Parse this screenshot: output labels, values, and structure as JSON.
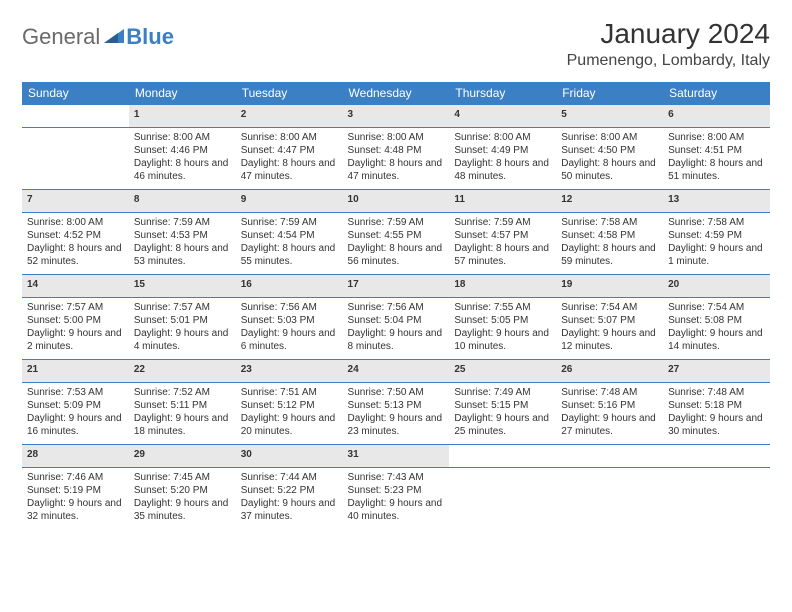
{
  "logo": {
    "text1": "General",
    "text2": "Blue"
  },
  "title": "January 2024",
  "location": "Pumenengo, Lombardy, Italy",
  "colors": {
    "header_bg": "#3b7fc4",
    "header_text": "#ffffff",
    "daynum_bg": "#e8e8e8",
    "border": "#3b7fc4",
    "text": "#333333",
    "logo_gray": "#6a6a6a",
    "logo_blue": "#3b7fc4"
  },
  "day_headers": [
    "Sunday",
    "Monday",
    "Tuesday",
    "Wednesday",
    "Thursday",
    "Friday",
    "Saturday"
  ],
  "weeks": [
    [
      null,
      {
        "n": "1",
        "sr": "8:00 AM",
        "ss": "4:46 PM",
        "dl": "8 hours and 46 minutes."
      },
      {
        "n": "2",
        "sr": "8:00 AM",
        "ss": "4:47 PM",
        "dl": "8 hours and 47 minutes."
      },
      {
        "n": "3",
        "sr": "8:00 AM",
        "ss": "4:48 PM",
        "dl": "8 hours and 47 minutes."
      },
      {
        "n": "4",
        "sr": "8:00 AM",
        "ss": "4:49 PM",
        "dl": "8 hours and 48 minutes."
      },
      {
        "n": "5",
        "sr": "8:00 AM",
        "ss": "4:50 PM",
        "dl": "8 hours and 50 minutes."
      },
      {
        "n": "6",
        "sr": "8:00 AM",
        "ss": "4:51 PM",
        "dl": "8 hours and 51 minutes."
      }
    ],
    [
      {
        "n": "7",
        "sr": "8:00 AM",
        "ss": "4:52 PM",
        "dl": "8 hours and 52 minutes."
      },
      {
        "n": "8",
        "sr": "7:59 AM",
        "ss": "4:53 PM",
        "dl": "8 hours and 53 minutes."
      },
      {
        "n": "9",
        "sr": "7:59 AM",
        "ss": "4:54 PM",
        "dl": "8 hours and 55 minutes."
      },
      {
        "n": "10",
        "sr": "7:59 AM",
        "ss": "4:55 PM",
        "dl": "8 hours and 56 minutes."
      },
      {
        "n": "11",
        "sr": "7:59 AM",
        "ss": "4:57 PM",
        "dl": "8 hours and 57 minutes."
      },
      {
        "n": "12",
        "sr": "7:58 AM",
        "ss": "4:58 PM",
        "dl": "8 hours and 59 minutes."
      },
      {
        "n": "13",
        "sr": "7:58 AM",
        "ss": "4:59 PM",
        "dl": "9 hours and 1 minute."
      }
    ],
    [
      {
        "n": "14",
        "sr": "7:57 AM",
        "ss": "5:00 PM",
        "dl": "9 hours and 2 minutes."
      },
      {
        "n": "15",
        "sr": "7:57 AM",
        "ss": "5:01 PM",
        "dl": "9 hours and 4 minutes."
      },
      {
        "n": "16",
        "sr": "7:56 AM",
        "ss": "5:03 PM",
        "dl": "9 hours and 6 minutes."
      },
      {
        "n": "17",
        "sr": "7:56 AM",
        "ss": "5:04 PM",
        "dl": "9 hours and 8 minutes."
      },
      {
        "n": "18",
        "sr": "7:55 AM",
        "ss": "5:05 PM",
        "dl": "9 hours and 10 minutes."
      },
      {
        "n": "19",
        "sr": "7:54 AM",
        "ss": "5:07 PM",
        "dl": "9 hours and 12 minutes."
      },
      {
        "n": "20",
        "sr": "7:54 AM",
        "ss": "5:08 PM",
        "dl": "9 hours and 14 minutes."
      }
    ],
    [
      {
        "n": "21",
        "sr": "7:53 AM",
        "ss": "5:09 PM",
        "dl": "9 hours and 16 minutes."
      },
      {
        "n": "22",
        "sr": "7:52 AM",
        "ss": "5:11 PM",
        "dl": "9 hours and 18 minutes."
      },
      {
        "n": "23",
        "sr": "7:51 AM",
        "ss": "5:12 PM",
        "dl": "9 hours and 20 minutes."
      },
      {
        "n": "24",
        "sr": "7:50 AM",
        "ss": "5:13 PM",
        "dl": "9 hours and 23 minutes."
      },
      {
        "n": "25",
        "sr": "7:49 AM",
        "ss": "5:15 PM",
        "dl": "9 hours and 25 minutes."
      },
      {
        "n": "26",
        "sr": "7:48 AM",
        "ss": "5:16 PM",
        "dl": "9 hours and 27 minutes."
      },
      {
        "n": "27",
        "sr": "7:48 AM",
        "ss": "5:18 PM",
        "dl": "9 hours and 30 minutes."
      }
    ],
    [
      {
        "n": "28",
        "sr": "7:46 AM",
        "ss": "5:19 PM",
        "dl": "9 hours and 32 minutes."
      },
      {
        "n": "29",
        "sr": "7:45 AM",
        "ss": "5:20 PM",
        "dl": "9 hours and 35 minutes."
      },
      {
        "n": "30",
        "sr": "7:44 AM",
        "ss": "5:22 PM",
        "dl": "9 hours and 37 minutes."
      },
      {
        "n": "31",
        "sr": "7:43 AM",
        "ss": "5:23 PM",
        "dl": "9 hours and 40 minutes."
      },
      null,
      null,
      null
    ]
  ],
  "labels": {
    "sunrise": "Sunrise:",
    "sunset": "Sunset:",
    "daylight": "Daylight:"
  }
}
